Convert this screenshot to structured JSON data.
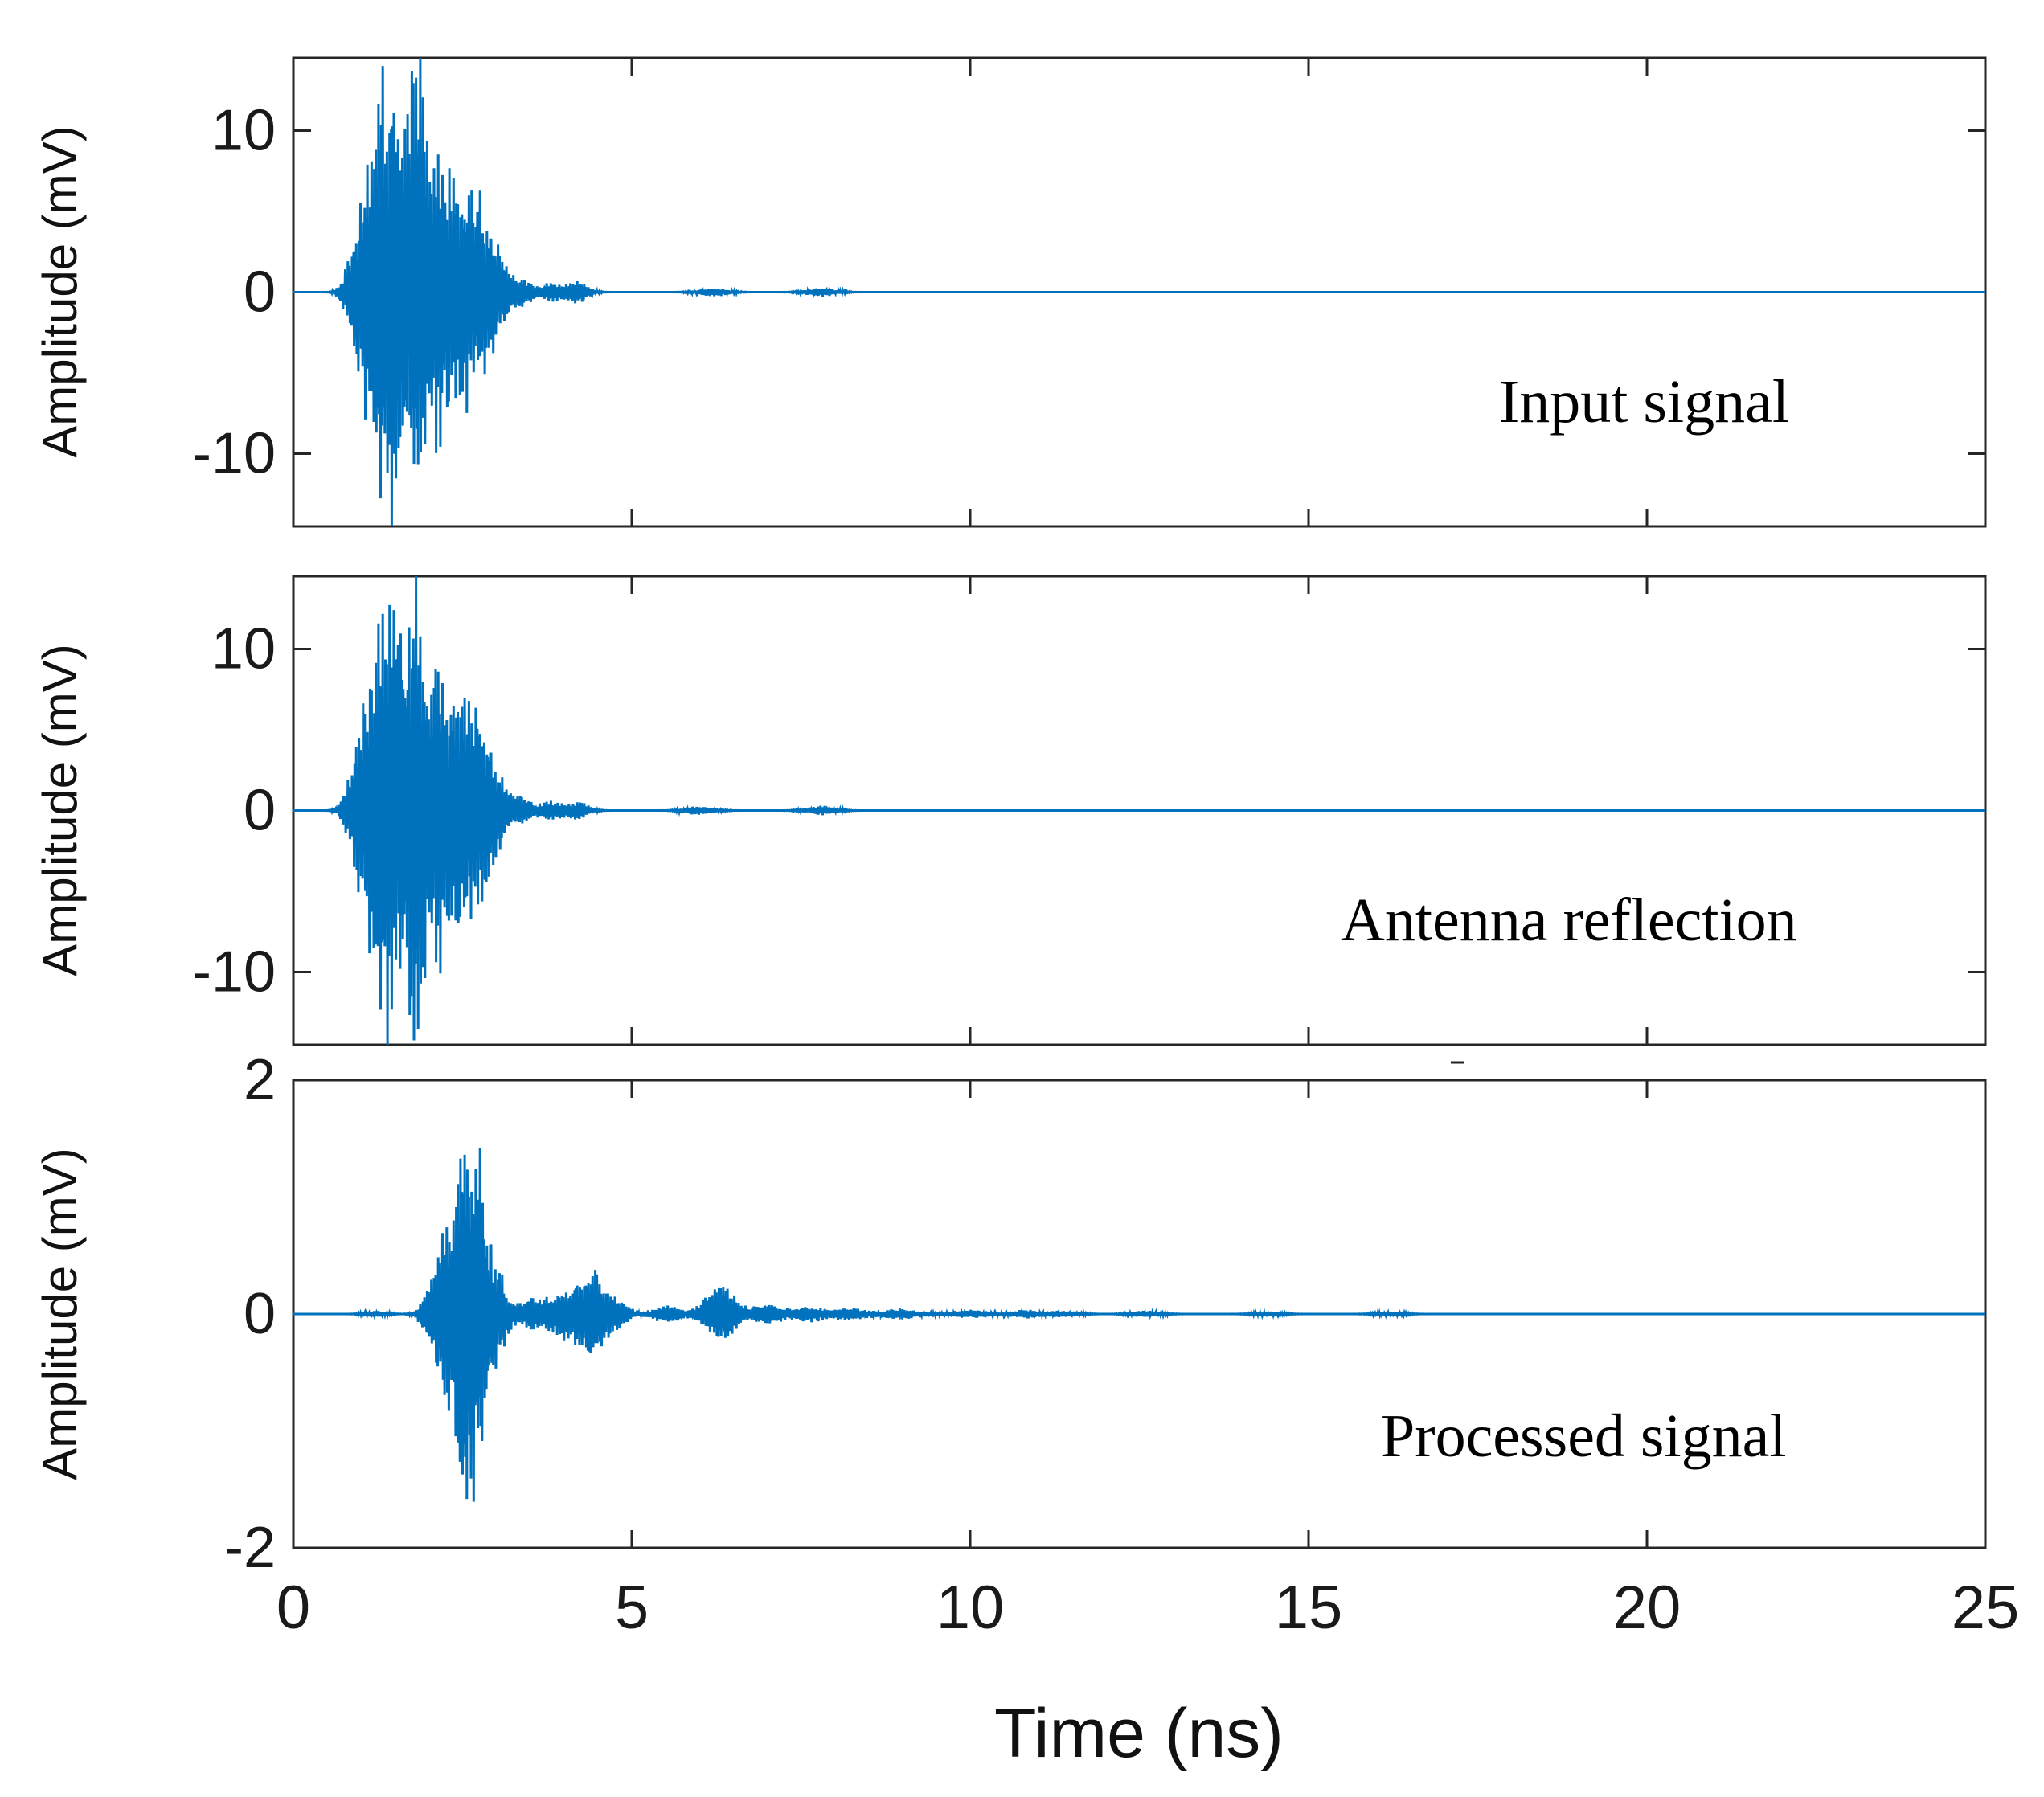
{
  "chart_data": [
    {
      "type": "line",
      "title": "",
      "annotation": "Input signal",
      "xlabel": "",
      "ylabel": "Amplitude (mV)",
      "xlim": [
        0,
        25
      ],
      "ylim": [
        -14.5,
        14.5
      ],
      "xticks": [
        "0",
        "5",
        "10",
        "15",
        "20",
        "25"
      ],
      "yticks": [
        {
          "value": 10,
          "label": "10"
        },
        {
          "value": 0,
          "label": "0"
        },
        {
          "value": -10,
          "label": "-10"
        }
      ],
      "series": [
        {
          "name": "Input signal",
          "color": "#0072BD",
          "bursts": [
            {
              "t": 0.8,
              "amp": 1.0,
              "w": 0.1
            },
            {
              "t": 1.0,
              "amp": 4.0,
              "w": 0.12
            },
            {
              "t": 1.25,
              "amp": 9.5,
              "w": 0.15
            },
            {
              "t": 1.45,
              "amp": 11.0,
              "w": 0.12
            },
            {
              "t": 1.7,
              "amp": 10.0,
              "w": 0.1
            },
            {
              "t": 1.85,
              "amp": 13.2,
              "w": 0.08
            },
            {
              "t": 2.1,
              "amp": 9.5,
              "w": 0.12
            },
            {
              "t": 2.4,
              "amp": 6.8,
              "w": 0.15
            },
            {
              "t": 2.7,
              "amp": 6.0,
              "w": 0.15
            },
            {
              "t": 3.0,
              "amp": 2.6,
              "w": 0.15
            },
            {
              "t": 3.4,
              "amp": 0.9,
              "w": 0.12
            },
            {
              "t": 3.8,
              "amp": 0.6,
              "w": 0.15
            },
            {
              "t": 4.2,
              "amp": 0.7,
              "w": 0.15
            },
            {
              "t": 6.2,
              "amp": 0.3,
              "w": 0.2
            },
            {
              "t": 7.8,
              "amp": 0.3,
              "w": 0.2
            }
          ]
        }
      ]
    },
    {
      "type": "line",
      "title": "",
      "annotation": "Antenna reflection",
      "xlabel": "",
      "ylabel": "Amplitude (mV)",
      "xlim": [
        0,
        25
      ],
      "ylim": [
        -14.5,
        14.5
      ],
      "xticks": [
        "0",
        "5",
        "10",
        "15",
        "20",
        "25"
      ],
      "yticks": [
        {
          "value": 10,
          "label": "10"
        },
        {
          "value": 0,
          "label": "0"
        },
        {
          "value": -10,
          "label": "-10"
        }
      ],
      "series": [
        {
          "name": "Antenna reflection",
          "color": "#0072BD",
          "bursts": [
            {
              "t": 0.8,
              "amp": 1.0,
              "w": 0.1
            },
            {
              "t": 1.0,
              "amp": 4.0,
              "w": 0.12
            },
            {
              "t": 1.25,
              "amp": 9.5,
              "w": 0.15
            },
            {
              "t": 1.45,
              "amp": 11.0,
              "w": 0.12
            },
            {
              "t": 1.7,
              "amp": 10.0,
              "w": 0.1
            },
            {
              "t": 1.85,
              "amp": 13.2,
              "w": 0.08
            },
            {
              "t": 2.1,
              "amp": 9.5,
              "w": 0.12
            },
            {
              "t": 2.4,
              "amp": 6.8,
              "w": 0.15
            },
            {
              "t": 2.7,
              "amp": 6.0,
              "w": 0.15
            },
            {
              "t": 3.0,
              "amp": 2.6,
              "w": 0.15
            },
            {
              "t": 3.4,
              "amp": 0.9,
              "w": 0.12
            },
            {
              "t": 3.8,
              "amp": 0.6,
              "w": 0.15
            },
            {
              "t": 4.2,
              "amp": 0.6,
              "w": 0.15
            },
            {
              "t": 6.0,
              "amp": 0.3,
              "w": 0.2
            },
            {
              "t": 7.8,
              "amp": 0.3,
              "w": 0.2
            }
          ]
        }
      ]
    },
    {
      "type": "line",
      "title": "",
      "annotation": "Processed signal",
      "xlabel": "Time (ns)",
      "ylabel": "Amplitude (mV)",
      "xlim": [
        0,
        25
      ],
      "ylim": [
        -2,
        2
      ],
      "xticks": [
        "0",
        "5",
        "10",
        "15",
        "20",
        "25"
      ],
      "yticks": [
        {
          "value": 2,
          "label": "2"
        },
        {
          "value": 0,
          "label": "0"
        },
        {
          "value": -2,
          "label": "-2"
        }
      ],
      "series": [
        {
          "name": "Processed signal",
          "color": "#0072BD",
          "bursts": [
            {
              "t": 1.2,
              "amp": 0.03,
              "w": 0.15
            },
            {
              "t": 2.0,
              "amp": 0.15,
              "w": 0.12
            },
            {
              "t": 2.3,
              "amp": 0.9,
              "w": 0.15
            },
            {
              "t": 2.55,
              "amp": 1.45,
              "w": 0.1
            },
            {
              "t": 2.75,
              "amp": 1.3,
              "w": 0.1
            },
            {
              "t": 3.0,
              "amp": 0.45,
              "w": 0.12
            },
            {
              "t": 3.5,
              "amp": 0.15,
              "w": 0.2
            },
            {
              "t": 4.0,
              "amp": 0.2,
              "w": 0.2
            },
            {
              "t": 4.4,
              "amp": 0.42,
              "w": 0.18
            },
            {
              "t": 4.8,
              "amp": 0.12,
              "w": 0.15
            },
            {
              "t": 5.5,
              "amp": 0.08,
              "w": 0.2
            },
            {
              "t": 6.3,
              "amp": 0.28,
              "w": 0.2
            },
            {
              "t": 7.0,
              "amp": 0.1,
              "w": 0.2
            },
            {
              "t": 7.6,
              "amp": 0.07,
              "w": 0.2
            },
            {
              "t": 8.2,
              "amp": 0.06,
              "w": 0.25
            },
            {
              "t": 9.0,
              "amp": 0.05,
              "w": 0.25
            },
            {
              "t": 10.0,
              "amp": 0.04,
              "w": 0.25
            },
            {
              "t": 10.8,
              "amp": 0.04,
              "w": 0.2
            },
            {
              "t": 11.4,
              "amp": 0.03,
              "w": 0.2
            },
            {
              "t": 12.6,
              "amp": 0.03,
              "w": 0.2
            },
            {
              "t": 14.4,
              "amp": 0.02,
              "w": 0.2
            },
            {
              "t": 16.2,
              "amp": 0.02,
              "w": 0.2
            }
          ]
        }
      ]
    }
  ]
}
